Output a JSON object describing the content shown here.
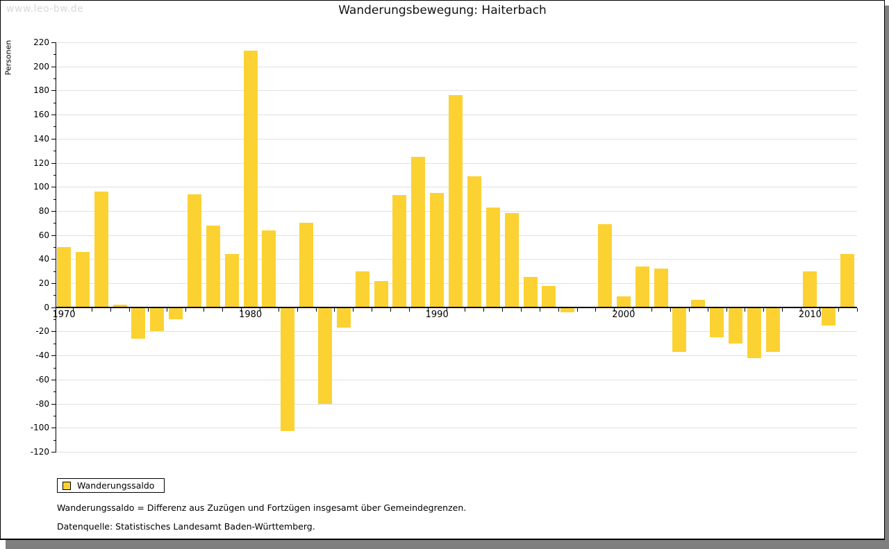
{
  "page": {
    "watermark": "www.leo-bw.de",
    "title": "Wanderungsbewegung: Haiterbach"
  },
  "y_axis_title": "Personen",
  "legend": {
    "label": "Wanderungssaldo"
  },
  "footnotes": {
    "definition": "Wanderungssaldo = Differenz aus Zuzügen und Fortzügen insgesamt über Gemeindegrenzen.",
    "source": "Datenquelle: Statistisches Landesamt Baden-Württemberg."
  },
  "colors": {
    "bar": "#fbd232",
    "grid": "#e0e0e0",
    "axis": "#000000",
    "watermark": "#d8d8d8",
    "shadow": "#7f7f7f"
  },
  "chart_data": {
    "type": "bar",
    "title": "Wanderungsbewegung: Haiterbach",
    "xlabel": "",
    "ylabel": "Personen",
    "ylim": [
      -120,
      220
    ],
    "ytick_step": 20,
    "y_minor_tick_step": 10,
    "grid": true,
    "legend_position": "bottom-left",
    "x": [
      1970,
      1971,
      1972,
      1973,
      1974,
      1975,
      1976,
      1977,
      1978,
      1979,
      1980,
      1981,
      1982,
      1983,
      1984,
      1985,
      1986,
      1987,
      1988,
      1989,
      1990,
      1991,
      1992,
      1993,
      1994,
      1995,
      1996,
      1997,
      1998,
      1999,
      2000,
      2001,
      2002,
      2003,
      2004,
      2005,
      2006,
      2007,
      2008,
      2009,
      2010,
      2011,
      2012
    ],
    "xtick_labels": [
      1970,
      1980,
      1990,
      2000,
      2010
    ],
    "series": [
      {
        "name": "Wanderungssaldo",
        "values": [
          50,
          46,
          96,
          2,
          -26,
          -20,
          -10,
          94,
          68,
          44,
          213,
          64,
          -103,
          70,
          -80,
          -17,
          30,
          22,
          93,
          125,
          95,
          176,
          109,
          83,
          78,
          25,
          18,
          -4,
          0,
          69,
          9,
          34,
          32,
          -37,
          6,
          -25,
          -30,
          -42,
          -37,
          0,
          30,
          -15,
          44
        ]
      }
    ]
  }
}
